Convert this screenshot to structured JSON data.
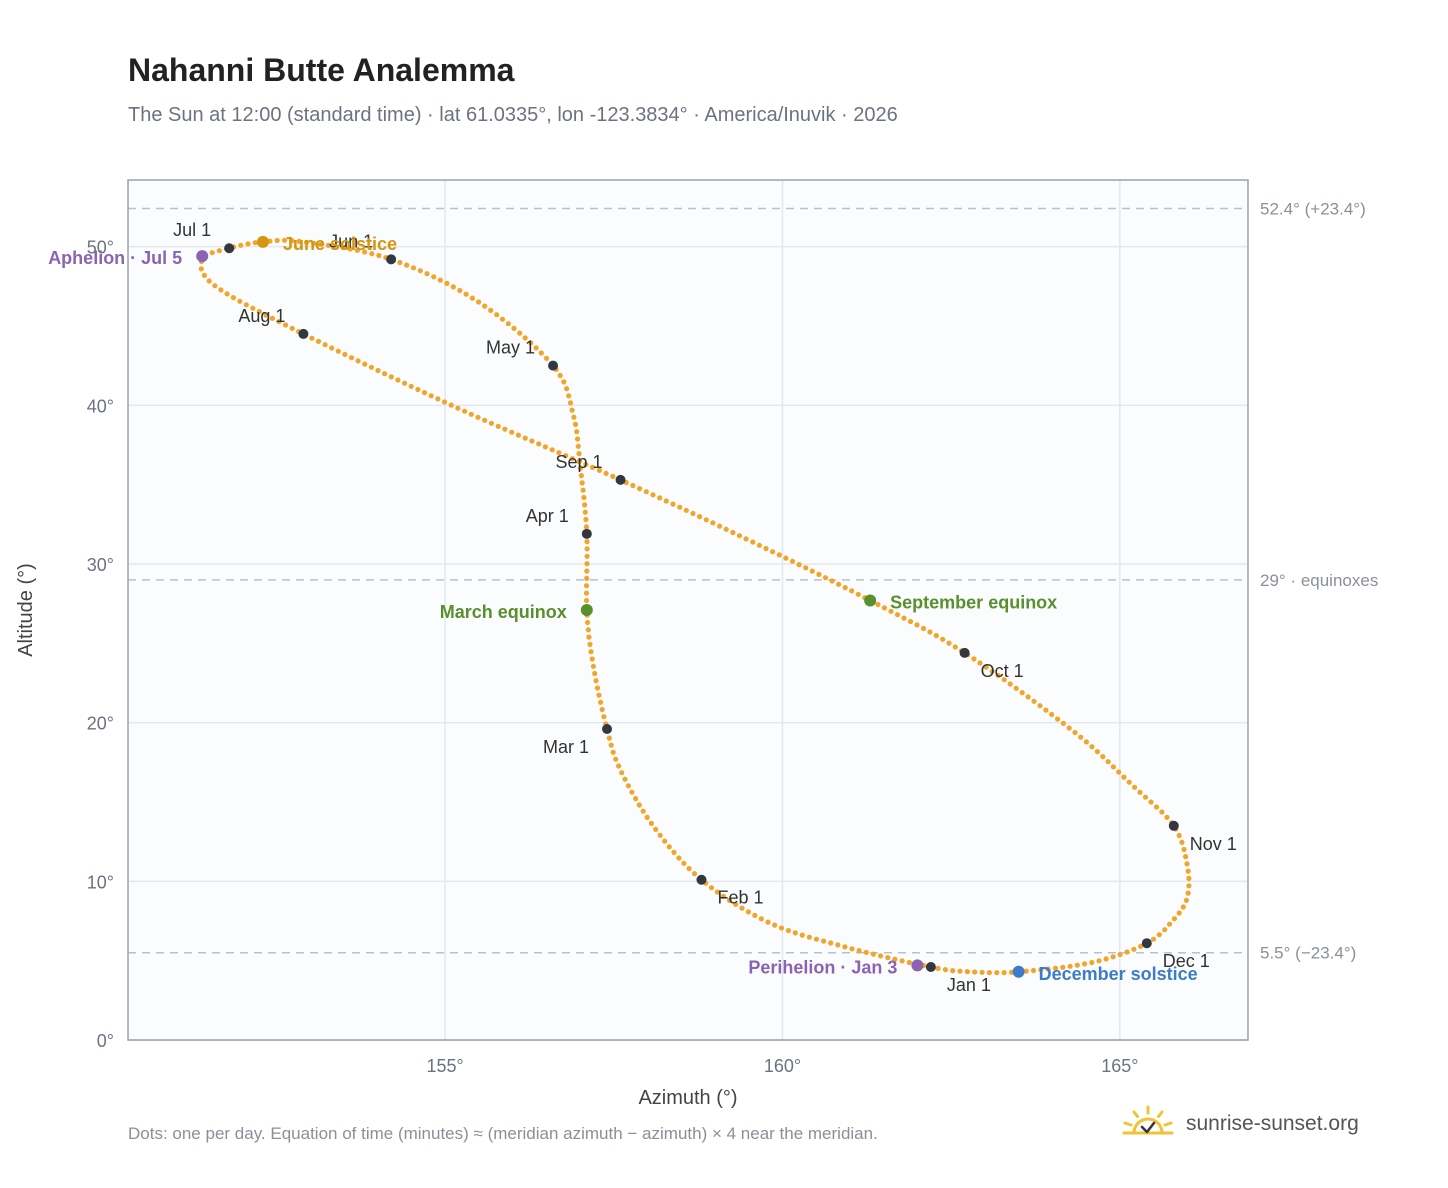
{
  "header": {
    "title": "Nahanni Butte Analemma",
    "subtitle": "The Sun at 12:00 (standard time) · lat 61.0335°, lon -123.3834° · America/Inuvik · 2026"
  },
  "footer": {
    "note": "Dots: one per day. Equation of time (minutes) ≈ (meridian azimuth − azimuth) × 4 near the meridian.",
    "brand": "sunrise-sunset.org"
  },
  "colors": {
    "path": "#f2a52b",
    "month_marker": "#333840",
    "solstice_june": "#d4960f",
    "equinox": "#5a8f2e",
    "solstice_december": "#3d7cc9",
    "aphelion_perihelion": "#8a63b3",
    "reference_line": "#b8c2cc",
    "grid": "#e3e8ee",
    "plot_background": "#fafcfd"
  },
  "icons": {
    "brand": "sun-check-icon"
  },
  "chart_data": {
    "type": "scatter",
    "xlabel": "Azimuth (°)",
    "ylabel": "Altitude (°)",
    "xlim": [
      150.3,
      166.9
    ],
    "ylim": [
      0,
      54.2
    ],
    "x_ticks": [
      {
        "value": 155,
        "label": "155°"
      },
      {
        "value": 160,
        "label": "160°"
      },
      {
        "value": 165,
        "label": "165°"
      }
    ],
    "y_ticks": [
      {
        "value": 0,
        "label": "0°"
      },
      {
        "value": 10,
        "label": "10°"
      },
      {
        "value": 20,
        "label": "20°"
      },
      {
        "value": 30,
        "label": "30°"
      },
      {
        "value": 40,
        "label": "40°"
      },
      {
        "value": 50,
        "label": "50°"
      }
    ],
    "grid": true,
    "reference_lines": [
      {
        "y": 52.4,
        "label": "52.4° (+23.4°)"
      },
      {
        "y": 29.0,
        "label": "29° · equinoxes"
      },
      {
        "y": 5.5,
        "label": "5.5° (−23.4°)"
      }
    ],
    "path_anchors": [
      {
        "x": 162.2,
        "y": 4.6
      },
      {
        "x": 160.9,
        "y": 5.9
      },
      {
        "x": 159.8,
        "y": 7.4
      },
      {
        "x": 158.8,
        "y": 10.1
      },
      {
        "x": 158.1,
        "y": 13.4
      },
      {
        "x": 157.6,
        "y": 17.0
      },
      {
        "x": 157.4,
        "y": 19.6
      },
      {
        "x": 157.2,
        "y": 23.5
      },
      {
        "x": 157.1,
        "y": 27.1
      },
      {
        "x": 157.1,
        "y": 31.9
      },
      {
        "x": 157.0,
        "y": 36.3
      },
      {
        "x": 156.9,
        "y": 39.4
      },
      {
        "x": 156.6,
        "y": 42.5
      },
      {
        "x": 155.5,
        "y": 46.5
      },
      {
        "x": 154.2,
        "y": 49.2
      },
      {
        "x": 152.9,
        "y": 50.3
      },
      {
        "x": 152.3,
        "y": 50.3
      },
      {
        "x": 151.8,
        "y": 49.9
      },
      {
        "x": 151.4,
        "y": 49.2
      },
      {
        "x": 151.6,
        "y": 47.5
      },
      {
        "x": 152.9,
        "y": 44.5
      },
      {
        "x": 155.2,
        "y": 39.8
      },
      {
        "x": 157.6,
        "y": 35.3
      },
      {
        "x": 159.6,
        "y": 31.3
      },
      {
        "x": 161.3,
        "y": 27.7
      },
      {
        "x": 162.7,
        "y": 24.4
      },
      {
        "x": 164.3,
        "y": 19.5
      },
      {
        "x": 165.2,
        "y": 16.0
      },
      {
        "x": 165.8,
        "y": 13.5
      },
      {
        "x": 166.0,
        "y": 11.0
      },
      {
        "x": 166.0,
        "y": 9.0
      },
      {
        "x": 165.8,
        "y": 7.6
      },
      {
        "x": 165.4,
        "y": 6.1
      },
      {
        "x": 164.6,
        "y": 4.9
      },
      {
        "x": 163.5,
        "y": 4.3
      },
      {
        "x": 162.8,
        "y": 4.3
      },
      {
        "x": 162.2,
        "y": 4.6
      }
    ],
    "month_markers": [
      {
        "label": "Jan 1",
        "x": 162.2,
        "y": 4.6,
        "dx": 16,
        "dy": 24,
        "anchor": "start"
      },
      {
        "label": "Feb 1",
        "x": 158.8,
        "y": 10.1,
        "dx": 16,
        "dy": 24,
        "anchor": "start"
      },
      {
        "label": "Mar 1",
        "x": 157.4,
        "y": 19.6,
        "dx": -18,
        "dy": 24,
        "anchor": "end"
      },
      {
        "label": "Apr 1",
        "x": 157.1,
        "y": 31.9,
        "dx": -18,
        "dy": -12,
        "anchor": "end"
      },
      {
        "label": "May 1",
        "x": 156.6,
        "y": 42.5,
        "dx": -18,
        "dy": -12,
        "anchor": "end"
      },
      {
        "label": "Jun 1",
        "x": 154.2,
        "y": 49.2,
        "dx": -18,
        "dy": -12,
        "anchor": "end"
      },
      {
        "label": "Jul 1",
        "x": 151.8,
        "y": 49.9,
        "dx": -18,
        "dy": -12,
        "anchor": "end"
      },
      {
        "label": "Aug 1",
        "x": 152.9,
        "y": 44.5,
        "dx": -18,
        "dy": -12,
        "anchor": "end"
      },
      {
        "label": "Sep 1",
        "x": 157.6,
        "y": 35.3,
        "dx": -18,
        "dy": -12,
        "anchor": "end"
      },
      {
        "label": "Oct 1",
        "x": 162.7,
        "y": 24.4,
        "dx": 16,
        "dy": 24,
        "anchor": "start"
      },
      {
        "label": "Nov 1",
        "x": 165.8,
        "y": 13.5,
        "dx": 16,
        "dy": 24,
        "anchor": "start"
      },
      {
        "label": "Dec 1",
        "x": 165.4,
        "y": 6.1,
        "dx": 16,
        "dy": 24,
        "anchor": "start"
      }
    ],
    "events": [
      {
        "label": "June solstice",
        "x": 152.3,
        "y": 50.3,
        "color": "#d4960f",
        "dx": 20,
        "dy": 8,
        "anchor": "start"
      },
      {
        "label": "Aphelion · Jul 5",
        "x": 151.4,
        "y": 49.4,
        "color": "#8a63b3",
        "dx": -20,
        "dy": 8,
        "anchor": "end"
      },
      {
        "label": "March equinox",
        "x": 157.1,
        "y": 27.1,
        "color": "#5a8f2e",
        "dx": -20,
        "dy": 8,
        "anchor": "end"
      },
      {
        "label": "September equinox",
        "x": 161.3,
        "y": 27.7,
        "color": "#5a8f2e",
        "dx": 20,
        "dy": 8,
        "anchor": "start"
      },
      {
        "label": "Perihelion · Jan 3",
        "x": 162.0,
        "y": 4.7,
        "color": "#8a63b3",
        "dx": -20,
        "dy": 8,
        "anchor": "end"
      },
      {
        "label": "December solstice",
        "x": 163.5,
        "y": 4.3,
        "color": "#3d7cc9",
        "dx": 20,
        "dy": 8,
        "anchor": "start"
      }
    ]
  }
}
